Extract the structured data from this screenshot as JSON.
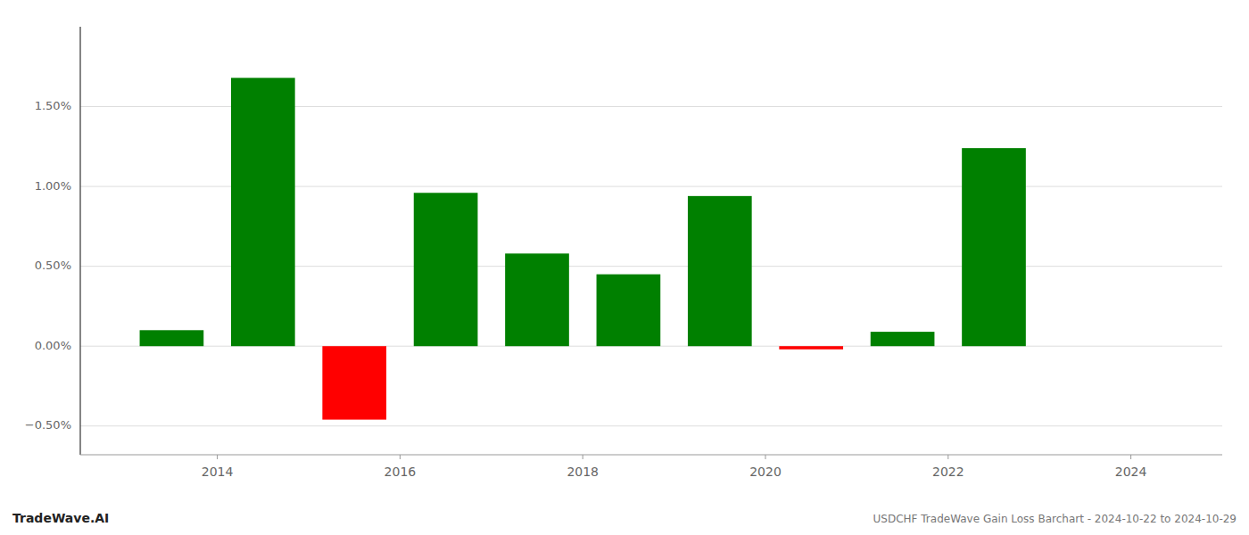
{
  "chart_data": {
    "type": "bar",
    "x": [
      2013.5,
      2014.5,
      2015.5,
      2016.5,
      2017.5,
      2018.5,
      2019.5,
      2020.5,
      2021.5,
      2022.5
    ],
    "values": [
      0.001,
      0.0168,
      -0.0046,
      0.0096,
      0.0058,
      0.0045,
      0.0094,
      -0.0002,
      0.0009,
      0.0124
    ],
    "colors": [
      "#008000",
      "#008000",
      "#ff0000",
      "#008000",
      "#008000",
      "#008000",
      "#008000",
      "#ff0000",
      "#008000",
      "#008000"
    ],
    "xlim": [
      2012.5,
      2025.0
    ],
    "xticks": [
      2014,
      2016,
      2018,
      2020,
      2022,
      2024
    ],
    "ylim": [
      -0.0068,
      0.02
    ],
    "yticks": [
      {
        "value": -0.005,
        "label": "−0.50%"
      },
      {
        "value": 0.0,
        "label": "0.00%"
      },
      {
        "value": 0.005,
        "label": "0.50%"
      },
      {
        "value": 0.01,
        "label": "1.00%"
      },
      {
        "value": 0.015,
        "label": "1.50%"
      }
    ],
    "grid": true,
    "annotations": [
      "TradeWave.AI",
      "USDCHF TradeWave Gain Loss Barchart - 2024-10-22 to 2024-10-29"
    ]
  }
}
